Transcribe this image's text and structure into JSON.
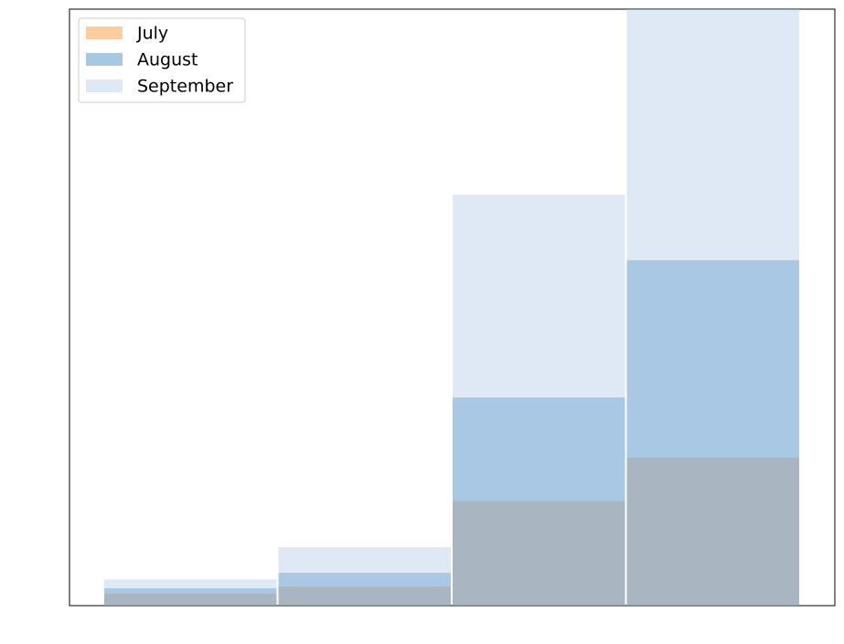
{
  "chart_data": {
    "type": "bar",
    "mode": "overlap",
    "categories": [
      null,
      null,
      null,
      null
    ],
    "series": [
      {
        "name": "July",
        "color": "#ff7f0e",
        "values": [
          2.0,
          3.2,
          17.5,
          24.8
        ]
      },
      {
        "name": "August",
        "color": "#1f77b4",
        "values": [
          2.9,
          5.5,
          34.9,
          57.9
        ]
      },
      {
        "name": "September",
        "color": "#aec7e8",
        "values": [
          4.4,
          9.8,
          68.9,
          100
        ]
      }
    ],
    "ylim": [
      0,
      100
    ],
    "legend": "upper left"
  }
}
